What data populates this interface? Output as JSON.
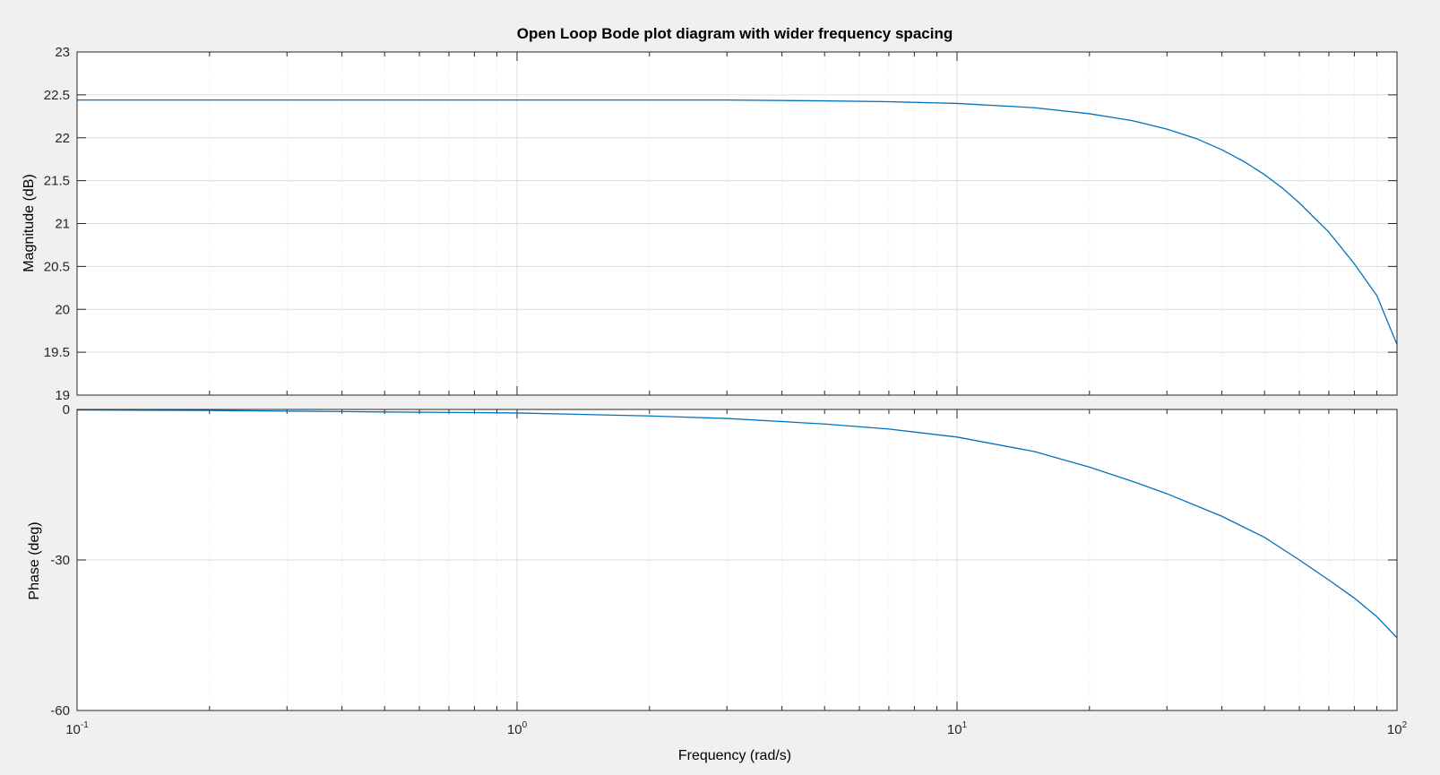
{
  "chart_data": {
    "type": "line",
    "title": "Open Loop Bode plot diagram with wider frequency spacing",
    "xlabel": "Frequency  (rad/s)",
    "x_scale": "log",
    "xlim": [
      0.1,
      100
    ],
    "x_ticks": [
      {
        "base": "10",
        "exp": "-1",
        "value": 0.1
      },
      {
        "base": "10",
        "exp": "0",
        "value": 1
      },
      {
        "base": "10",
        "exp": "1",
        "value": 10
      },
      {
        "base": "10",
        "exp": "2",
        "value": 100
      }
    ],
    "grid": true,
    "line_color": "#0072bd",
    "panels": [
      {
        "name": "magnitude",
        "ylabel": "Magnitude (dB)",
        "ylim": [
          19,
          23
        ],
        "y_ticks": [
          "23",
          "22.5",
          "22",
          "21.5",
          "21",
          "20.5",
          "20",
          "19.5",
          "19"
        ],
        "series": [
          {
            "x": [
              0.1,
              0.2,
              0.5,
              1,
              2,
              3,
              5,
              7,
              10,
              15,
              20,
              25,
              30,
              35,
              40,
              45,
              50,
              55,
              60,
              70,
              80,
              90,
              100
            ],
            "y": [
              22.44,
              22.44,
              22.44,
              22.44,
              22.44,
              22.44,
              22.43,
              22.42,
              22.4,
              22.35,
              22.28,
              22.2,
              22.1,
              21.99,
              21.86,
              21.72,
              21.57,
              21.41,
              21.24,
              20.9,
              20.53,
              20.16,
              19.59
            ]
          }
        ]
      },
      {
        "name": "phase",
        "ylabel": "Phase (deg)",
        "ylim": [
          -60,
          0
        ],
        "y_ticks": [
          "0",
          "-30",
          "-60"
        ],
        "series": [
          {
            "x": [
              0.1,
              0.2,
              0.5,
              1,
              2,
              3,
              5,
              7,
              10,
              15,
              20,
              25,
              30,
              40,
              50,
              60,
              70,
              80,
              90,
              100
            ],
            "y": [
              -0.1,
              -0.2,
              -0.5,
              -0.7,
              -1.3,
              -1.8,
              -2.9,
              -3.9,
              -5.5,
              -8.4,
              -11.5,
              -14.3,
              -16.8,
              -21.3,
              -25.5,
              -30,
              -34,
              -37.6,
              -41.3,
              -45.5
            ]
          }
        ]
      }
    ]
  }
}
